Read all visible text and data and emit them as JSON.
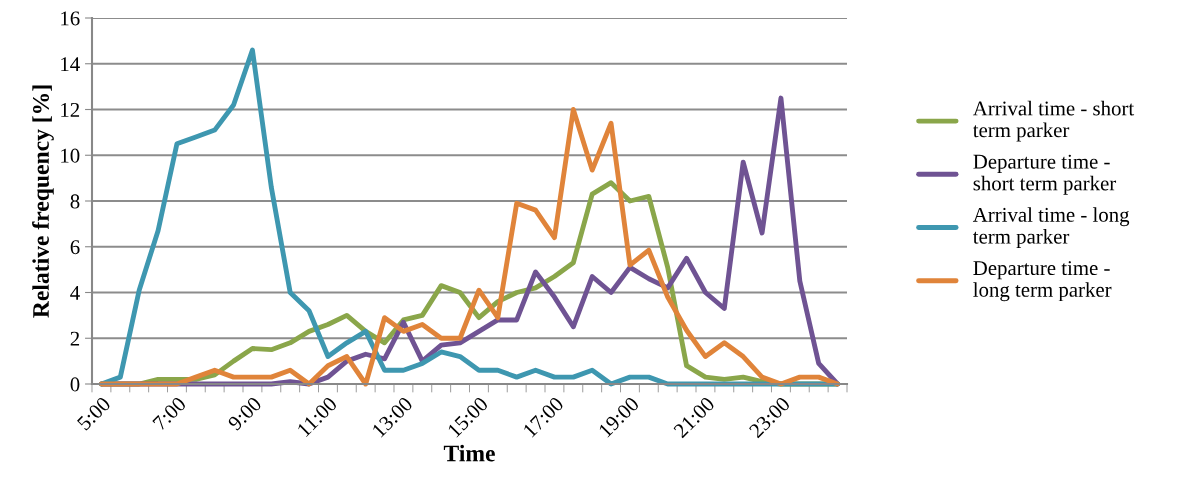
{
  "chart_data": {
    "type": "line",
    "xlabel": "Time",
    "ylabel": "Relative frequency [%]",
    "categories": [
      "5:00",
      null,
      null,
      null,
      "7:00",
      null,
      null,
      null,
      "9:00",
      null,
      null,
      null,
      "11:00",
      null,
      null,
      null,
      "13:00",
      null,
      null,
      null,
      "15:00",
      null,
      null,
      null,
      "17:00",
      null,
      null,
      null,
      "19:00",
      null,
      null,
      null,
      "21:00",
      null,
      null,
      null,
      "23:00",
      null,
      null,
      null
    ],
    "series": [
      {
        "name": "Arrival time - short\nterm parker",
        "color": "#8aa64a",
        "values": [
          0,
          0,
          0,
          0.2,
          0.2,
          0.2,
          0.4,
          1.0,
          1.55,
          1.5,
          1.8,
          2.3,
          2.6,
          3.0,
          2.3,
          1.8,
          2.8,
          3.0,
          4.3,
          4.0,
          2.9,
          3.6,
          4.0,
          4.2,
          4.7,
          5.3,
          8.3,
          8.8,
          8.0,
          8.2,
          5.1,
          0.8,
          0.3,
          0.2,
          0.3,
          0.1,
          0,
          0,
          0,
          0
        ]
      },
      {
        "name": "Departure time -\nshort term parker",
        "color": "#6f5393",
        "values": [
          0,
          0,
          0,
          0,
          0,
          0,
          0,
          0,
          0,
          0,
          0.1,
          0,
          0.3,
          1.0,
          1.3,
          1.1,
          2.7,
          1.0,
          1.7,
          1.8,
          2.3,
          2.8,
          2.8,
          4.9,
          3.8,
          2.5,
          4.7,
          4.0,
          5.1,
          4.6,
          4.2,
          5.5,
          4.0,
          3.3,
          9.7,
          6.6,
          12.5,
          4.5,
          0.9,
          0
        ]
      },
      {
        "name": "Arrival time - long\nterm parker",
        "color": "#3e97b0",
        "values": [
          0,
          0.3,
          4.1,
          6.7,
          10.5,
          10.8,
          11.1,
          12.2,
          14.6,
          8.6,
          4.0,
          3.2,
          1.2,
          1.8,
          2.3,
          0.6,
          0.6,
          0.9,
          1.4,
          1.2,
          0.6,
          0.6,
          0.3,
          0.6,
          0.3,
          0.3,
          0.6,
          0,
          0.3,
          0.3,
          0,
          0,
          0,
          0,
          0,
          0,
          0,
          0,
          0,
          0
        ]
      },
      {
        "name": "Departure time -\nlong term parker",
        "color": "#e0843a",
        "values": [
          0,
          0,
          0,
          0,
          0,
          0.3,
          0.6,
          0.3,
          0.3,
          0.3,
          0.6,
          0,
          0.8,
          1.2,
          0,
          2.9,
          2.3,
          2.6,
          2.0,
          2.0,
          4.1,
          2.9,
          7.9,
          7.6,
          6.4,
          12.0,
          9.35,
          11.4,
          5.2,
          5.85,
          3.8,
          2.35,
          1.2,
          1.8,
          1.2,
          0.3,
          0,
          0.3,
          0.3,
          0
        ]
      }
    ],
    "ylim": [
      0,
      16
    ],
    "yticks": [
      0,
      2,
      4,
      6,
      8,
      10,
      12,
      14,
      16
    ],
    "grid": "y",
    "legend": "right",
    "marker": "none",
    "line_style": "solid"
  }
}
